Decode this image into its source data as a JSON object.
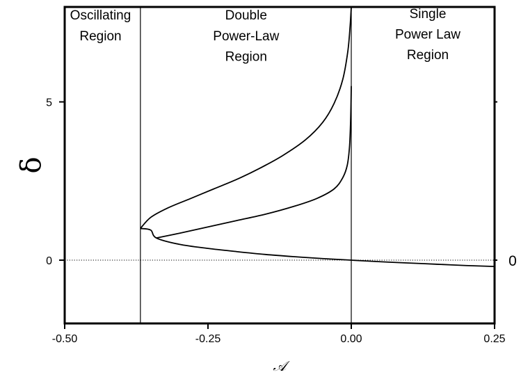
{
  "chart_data": {
    "type": "line",
    "xlabel": "𝒜",
    "ylabel": "δ",
    "xlim": [
      -0.5,
      0.25
    ],
    "ylim": [
      -2,
      8
    ],
    "x_ticks": [
      {
        "value": -0.5,
        "label": "-0.50"
      },
      {
        "value": -0.25,
        "label": "-0.25"
      },
      {
        "value": 0.0,
        "label": "0.00"
      },
      {
        "value": 0.25,
        "label": "0.25"
      }
    ],
    "y_ticks": [
      {
        "value": 0,
        "label": "0"
      },
      {
        "value": 5,
        "label": "5"
      }
    ],
    "right_label": {
      "value": 0,
      "label": "0"
    },
    "reference_lines": {
      "horizontal_dotted_y": 0,
      "vertical_x": [
        -0.3679,
        0.0
      ]
    },
    "regions": [
      {
        "lines": [
          "Oscillating",
          "Region"
        ],
        "x": -0.4375,
        "y": [
          7.6,
          6.95
        ]
      },
      {
        "lines": [
          "Double",
          "Power-Law",
          "Region"
        ],
        "x": -0.1835,
        "y": [
          7.6,
          6.95,
          6.3
        ]
      },
      {
        "lines": [
          "Single",
          "Power Law",
          "Region"
        ],
        "x": 0.1335,
        "y": [
          7.65,
          7.0,
          6.35
        ]
      }
    ],
    "series": [
      {
        "id": "upper-branch",
        "points": [
          [
            -0.3679,
            1.0
          ],
          [
            -0.35,
            1.35
          ],
          [
            -0.32,
            1.65
          ],
          [
            -0.28,
            1.95
          ],
          [
            -0.24,
            2.25
          ],
          [
            -0.2,
            2.55
          ],
          [
            -0.16,
            2.9
          ],
          [
            -0.12,
            3.3
          ],
          [
            -0.08,
            3.8
          ],
          [
            -0.05,
            4.35
          ],
          [
            -0.03,
            4.95
          ],
          [
            -0.015,
            5.7
          ],
          [
            -0.006,
            6.6
          ],
          [
            -0.002,
            7.4
          ],
          [
            0.0,
            8.0
          ]
        ]
      },
      {
        "id": "lower-branch",
        "points": [
          [
            -0.3679,
            1.0
          ],
          [
            -0.35,
            0.95
          ],
          [
            -0.34,
            0.7
          ],
          [
            -0.3,
            0.5
          ],
          [
            -0.25,
            0.37
          ],
          [
            -0.2,
            0.27
          ],
          [
            -0.15,
            0.18
          ],
          [
            -0.1,
            0.11
          ],
          [
            -0.05,
            0.05
          ],
          [
            0.0,
            0.0
          ],
          [
            0.05,
            -0.05
          ],
          [
            0.1,
            -0.09
          ],
          [
            0.15,
            -0.13
          ],
          [
            0.2,
            -0.17
          ],
          [
            0.25,
            -0.2
          ]
        ]
      },
      {
        "id": "middle-branch",
        "points": [
          [
            -0.34,
            0.7
          ],
          [
            -0.3,
            0.85
          ],
          [
            -0.25,
            1.05
          ],
          [
            -0.2,
            1.25
          ],
          [
            -0.15,
            1.45
          ],
          [
            -0.1,
            1.7
          ],
          [
            -0.06,
            1.95
          ],
          [
            -0.03,
            2.25
          ],
          [
            -0.015,
            2.6
          ],
          [
            -0.007,
            3.0
          ],
          [
            -0.003,
            3.6
          ],
          [
            -0.001,
            4.5
          ],
          [
            0.0,
            5.5
          ]
        ]
      }
    ]
  }
}
